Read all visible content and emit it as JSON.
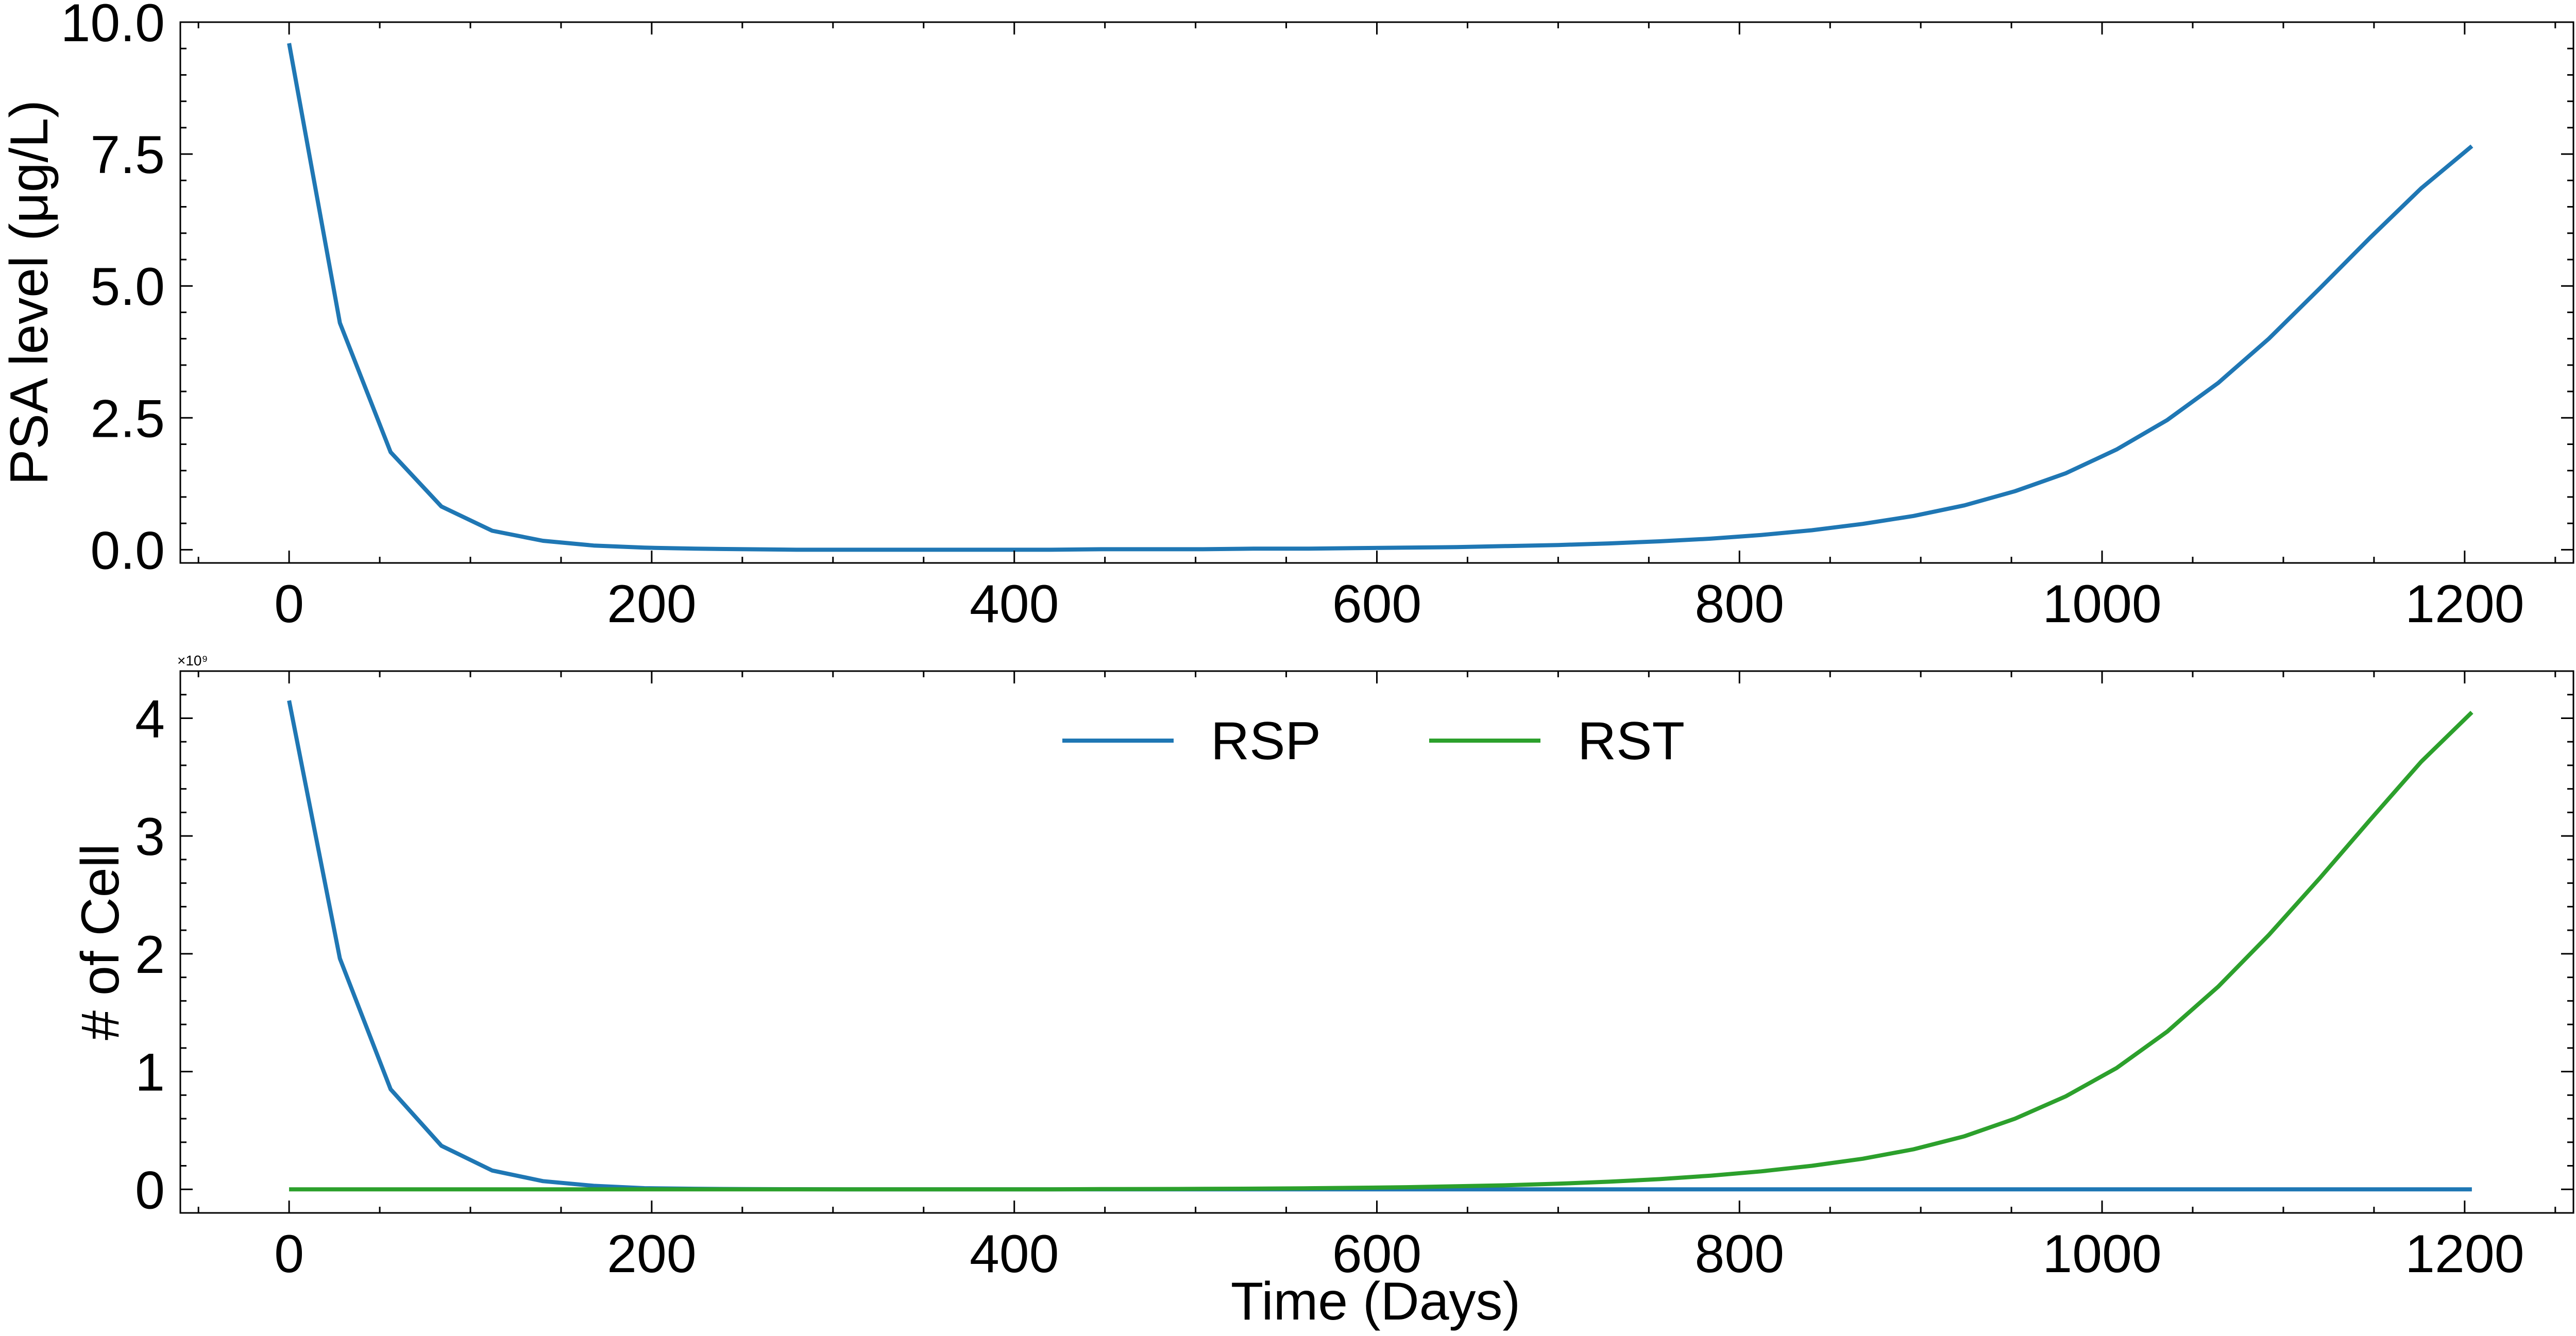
{
  "chart_data": [
    {
      "type": "line",
      "title": "",
      "xlabel": "",
      "ylabel": "PSA level (μg/L)",
      "xlim": [
        -60,
        1260
      ],
      "ylim": [
        -0.25,
        10.0
      ],
      "xticks": [
        0,
        200,
        400,
        600,
        800,
        1000,
        1200
      ],
      "xtick_labels": [
        "0",
        "200",
        "400",
        "600",
        "800",
        "1000",
        "1200"
      ],
      "yticks": [
        0,
        2.5,
        5,
        7.5,
        10
      ],
      "ytick_labels": [
        "0.0",
        "2.5",
        "5.0",
        "7.5",
        "10.0"
      ],
      "grid": false,
      "series": [
        {
          "color": "#1f77b4",
          "x": [
            0,
            28,
            56,
            84,
            112,
            140,
            168,
            196,
            224,
            252,
            280,
            308,
            336,
            364,
            392,
            420,
            448,
            476,
            504,
            532,
            560,
            588,
            616,
            644,
            672,
            700,
            728,
            756,
            784,
            812,
            840,
            868,
            896,
            924,
            952,
            980,
            1008,
            1036,
            1064,
            1092,
            1120,
            1148,
            1176,
            1204
          ],
          "y": [
            9.6,
            4.3,
            1.85,
            0.82,
            0.36,
            0.17,
            0.08,
            0.04,
            0.02,
            0.01,
            0.0,
            0.0,
            0.0,
            0.0,
            0.0,
            0.0,
            0.01,
            0.01,
            0.01,
            0.02,
            0.02,
            0.03,
            0.04,
            0.05,
            0.07,
            0.09,
            0.12,
            0.16,
            0.21,
            0.28,
            0.37,
            0.49,
            0.64,
            0.84,
            1.11,
            1.45,
            1.9,
            2.46,
            3.16,
            4.0,
            4.95,
            5.92,
            6.85,
            7.65
          ]
        }
      ]
    },
    {
      "type": "line",
      "title": "",
      "xlabel": "Time (Days)",
      "ylabel": "# of Cell",
      "y_multiplier": "×10⁹",
      "xlim": [
        -60,
        1260
      ],
      "ylim": [
        -0.2,
        4.4
      ],
      "xticks": [
        0,
        200,
        400,
        600,
        800,
        1000,
        1200
      ],
      "xtick_labels": [
        "0",
        "200",
        "400",
        "600",
        "800",
        "1000",
        "1200"
      ],
      "yticks": [
        0,
        1,
        2,
        3,
        4
      ],
      "ytick_labels": [
        "0",
        "1",
        "2",
        "3",
        "4"
      ],
      "grid": false,
      "legend": "top-center",
      "series": [
        {
          "name": "RSP",
          "color": "#1f77b4",
          "x": [
            0,
            28,
            56,
            84,
            112,
            140,
            168,
            196,
            224,
            252,
            280,
            308,
            336,
            364,
            392,
            420,
            448,
            476,
            504,
            532,
            560,
            588,
            616,
            644,
            672,
            700,
            728,
            756,
            784,
            812,
            840,
            868,
            896,
            924,
            952,
            980,
            1008,
            1036,
            1064,
            1092,
            1120,
            1148,
            1176,
            1204
          ],
          "y": [
            4.15,
            1.96,
            0.85,
            0.37,
            0.16,
            0.07,
            0.03,
            0.01,
            0.005,
            0.002,
            0.001,
            0.0,
            0.0,
            0.0,
            0.0,
            0.0,
            0.0,
            0.0,
            0.0,
            0.0,
            0.0,
            0.0,
            0.0,
            0.0,
            0.0,
            0.0,
            0.0,
            0.0,
            0.0,
            0.0,
            0.0,
            0.0,
            0.0,
            0.0,
            0.0,
            0.0,
            0.0,
            0.0,
            0.0,
            0.0,
            0.0,
            0.0,
            0.0,
            0.0
          ]
        },
        {
          "name": "RST",
          "color": "#2ca02c",
          "x": [
            0,
            28,
            56,
            84,
            112,
            140,
            168,
            196,
            224,
            252,
            280,
            308,
            336,
            364,
            392,
            420,
            448,
            476,
            504,
            532,
            560,
            588,
            616,
            644,
            672,
            700,
            728,
            756,
            784,
            812,
            840,
            868,
            896,
            924,
            952,
            980,
            1008,
            1036,
            1064,
            1092,
            1120,
            1148,
            1176,
            1204
          ],
          "y": [
            0.0,
            0.0,
            0.0,
            0.0,
            0.0,
            0.0,
            0.0,
            0.0,
            0.0,
            0.0,
            0.0,
            0.0,
            0.0,
            0.0,
            0.0,
            0.0,
            0.002,
            0.003,
            0.004,
            0.006,
            0.009,
            0.013,
            0.018,
            0.026,
            0.035,
            0.048,
            0.065,
            0.087,
            0.116,
            0.153,
            0.2,
            0.26,
            0.34,
            0.45,
            0.6,
            0.79,
            1.03,
            1.34,
            1.72,
            2.16,
            2.64,
            3.14,
            3.63,
            4.05
          ]
        }
      ]
    }
  ]
}
